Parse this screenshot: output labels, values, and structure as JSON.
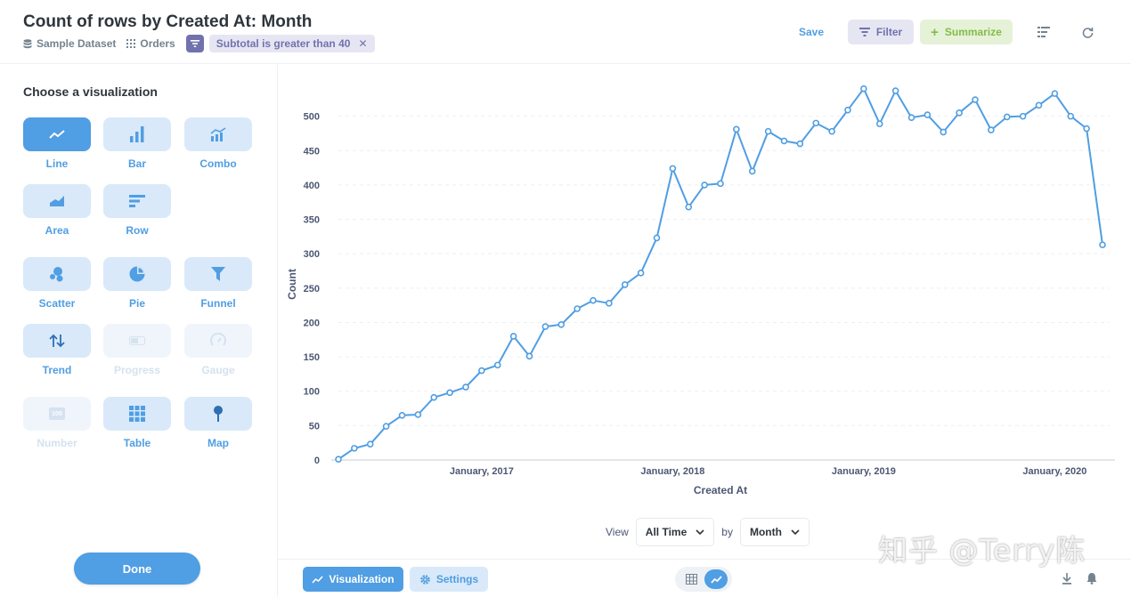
{
  "header": {
    "title": "Count of rows by Created At: Month",
    "breadcrumbs": [
      "Sample Dataset",
      "Orders"
    ],
    "filter_pill": "Subtotal is greater than 40",
    "save_label": "Save",
    "filter_label": "Filter",
    "summarize_label": "Summarize"
  },
  "sidebar": {
    "title": "Choose a visualization",
    "options": [
      {
        "label": "Line",
        "icon": "line-icon",
        "state": "active"
      },
      {
        "label": "Bar",
        "icon": "bar-icon",
        "state": "enabled"
      },
      {
        "label": "Combo",
        "icon": "combo-icon",
        "state": "enabled"
      },
      {
        "label": "Area",
        "icon": "area-icon",
        "state": "enabled"
      },
      {
        "label": "Row",
        "icon": "row-icon",
        "state": "enabled"
      },
      {
        "label": "Scatter",
        "icon": "scatter-icon",
        "state": "enabled"
      },
      {
        "label": "Pie",
        "icon": "pie-icon",
        "state": "enabled"
      },
      {
        "label": "Funnel",
        "icon": "funnel-icon",
        "state": "enabled"
      },
      {
        "label": "Trend",
        "icon": "trend-icon",
        "state": "enabled"
      },
      {
        "label": "Progress",
        "icon": "progress-icon",
        "state": "disabled"
      },
      {
        "label": "Gauge",
        "icon": "gauge-icon",
        "state": "disabled"
      },
      {
        "label": "Number",
        "icon": "number-icon",
        "state": "disabled",
        "icon_text": "100"
      },
      {
        "label": "Table",
        "icon": "table-icon",
        "state": "enabled"
      },
      {
        "label": "Map",
        "icon": "map-pin-icon",
        "state": "enabled"
      }
    ],
    "done_label": "Done"
  },
  "view_controls": {
    "view_label": "View",
    "range_value": "All Time",
    "by_label": "by",
    "unit_value": "Month"
  },
  "bottom_bar": {
    "visualization_label": "Visualization",
    "settings_label": "Settings"
  },
  "watermark": "知乎 @Terry陈",
  "colors": {
    "accent": "#509ee3",
    "filter": "#7172ad",
    "summarize": "#84bb4c",
    "line": "#509ee3"
  },
  "chart_data": {
    "type": "line",
    "xlabel": "Created At",
    "ylabel": "Count",
    "ylim": [
      0,
      550
    ],
    "yticks": [
      0,
      50,
      100,
      150,
      200,
      250,
      300,
      350,
      400,
      450,
      500
    ],
    "xtick_labels": [
      "January, 2017",
      "January, 2018",
      "January, 2019",
      "January, 2020"
    ],
    "grid": "horizontal dashed",
    "series": [
      {
        "x": [
          "2016-04",
          "2016-05",
          "2016-06",
          "2016-07",
          "2016-08",
          "2016-09",
          "2016-10",
          "2016-11",
          "2016-12",
          "2017-01",
          "2017-02",
          "2017-03",
          "2017-04",
          "2017-05",
          "2017-06",
          "2017-07",
          "2017-08",
          "2017-09",
          "2017-10",
          "2017-11",
          "2017-12",
          "2018-01",
          "2018-02",
          "2018-03",
          "2018-04",
          "2018-05",
          "2018-06",
          "2018-07",
          "2018-08",
          "2018-09",
          "2018-10",
          "2018-11",
          "2018-12",
          "2019-01",
          "2019-02",
          "2019-03",
          "2019-04",
          "2019-05",
          "2019-06",
          "2019-07",
          "2019-08",
          "2019-09",
          "2019-10",
          "2019-11",
          "2019-12",
          "2020-01",
          "2020-02",
          "2020-03",
          "2020-04"
        ],
        "values": [
          1,
          17,
          23,
          49,
          65,
          66,
          91,
          98,
          106,
          130,
          138,
          180,
          151,
          194,
          197,
          220,
          232,
          228,
          255,
          272,
          323,
          424,
          368,
          400,
          402,
          481,
          420,
          478,
          464,
          460,
          490,
          478,
          509,
          540,
          489,
          537,
          498,
          502,
          477,
          505,
          524,
          480,
          499,
          500,
          516,
          533,
          500,
          482,
          313
        ]
      }
    ]
  }
}
